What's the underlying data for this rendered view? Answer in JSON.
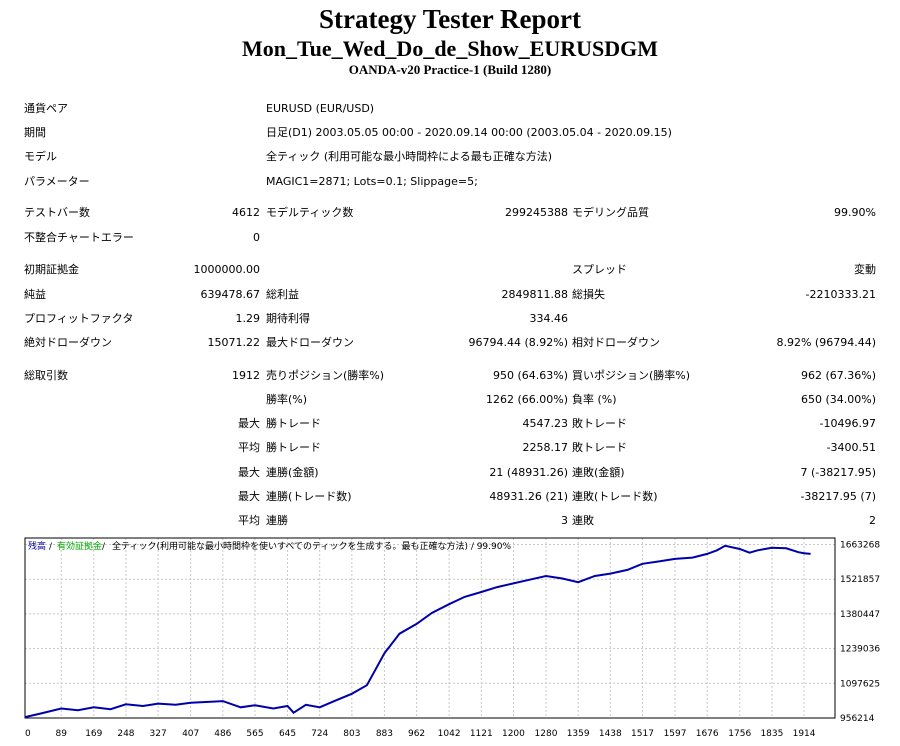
{
  "header": {
    "title": "Strategy Tester Report",
    "subtitle": "Mon_Tue_Wed_Do_de_Show_EURUSDGM",
    "build": "OANDA-v20 Practice-1 (Build 1280)"
  },
  "info": [
    {
      "label": "通貨ペア",
      "value": "EURUSD (EUR/USD)"
    },
    {
      "label": "期間",
      "value": "日足(D1) 2003.05.05 00:00 - 2020.09.14 00:00 (2003.05.04 - 2020.09.15)"
    },
    {
      "label": "モデル",
      "value": "全ティック (利用可能な最小時間枠による最も正確な方法)"
    },
    {
      "label": "パラメーター",
      "value": "MAGIC1=2871; Lots=0.1; Slippage=5;"
    }
  ],
  "stats": {
    "bars_label": "テストバー数",
    "bars_value": "4612",
    "ticks_label": "モデルティック数",
    "ticks_value": "299245388",
    "quality_label": "モデリング品質",
    "quality_value": "99.90%",
    "mismatch_label": "不整合チャートエラー",
    "mismatch_value": "0",
    "deposit_label": "初期証拠金",
    "deposit_value": "1000000.00",
    "spread_label": "スプレッド",
    "spread_value": "変動",
    "net_label": "純益",
    "net_value": "639478.67",
    "gross_profit_label": "総利益",
    "gross_profit_value": "2849811.88",
    "gross_loss_label": "総損失",
    "gross_loss_value": "-2210333.21",
    "pf_label": "プロフィットファクタ",
    "pf_value": "1.29",
    "payoff_label": "期待利得",
    "payoff_value": "334.46",
    "abs_dd_label": "絶対ドローダウン",
    "abs_dd_value": "15071.22",
    "max_dd_label": "最大ドローダウン",
    "max_dd_value": "96794.44 (8.92%)",
    "rel_dd_label": "相対ドローダウン",
    "rel_dd_value": "8.92% (96794.44)",
    "trades_label": "総取引数",
    "trades_value": "1912",
    "short_label": "売りポジション(勝率%)",
    "short_value": "950 (64.63%)",
    "long_label": "買いポジション(勝率%)",
    "long_value": "962 (67.36%)",
    "win_pct_label": "勝率(%)",
    "win_pct_value": "1262 (66.00%)",
    "loss_pct_label": "負率 (%)",
    "loss_pct_value": "650 (34.00%)",
    "max_prefix": "最大",
    "avg_prefix": "平均",
    "largest_win_label": "勝トレード",
    "largest_win_value": "4547.23",
    "largest_loss_label": "敗トレード",
    "largest_loss_value": "-10496.97",
    "avg_win_label": "勝トレード",
    "avg_win_value": "2258.17",
    "avg_loss_label": "敗トレード",
    "avg_loss_value": "-3400.51",
    "cons_wins_money_label": "連勝(金額)",
    "cons_wins_money_value": "21 (48931.26)",
    "cons_loss_money_label": "連敗(金額)",
    "cons_loss_money_value": "7 (-38217.95)",
    "cons_wins_count_label": "連勝(トレード数)",
    "cons_wins_count_value": "48931.26 (21)",
    "cons_loss_count_label": "連敗(トレード数)",
    "cons_loss_count_value": "-38217.95 (7)",
    "avg_cons_wins_label": "連勝",
    "avg_cons_wins_value": "3",
    "avg_cons_loss_label": "連敗",
    "avg_cons_loss_value": "2"
  },
  "chart_data": {
    "type": "line",
    "legend": {
      "balance": "残高",
      "sep1": " / ",
      "equity": "有効証拠金",
      "sep2": " / ",
      "desc": "全ティック(利用可能な最小時間枠を使いすべてのティックを生成する。最も正確な方法) / 99.90%"
    },
    "colors": {
      "balance": "#0000aa",
      "equity": "#00aa00",
      "grid": "#c8c8c8",
      "frame": "#000000"
    },
    "x_ticks": [
      0,
      89,
      169,
      248,
      327,
      407,
      486,
      565,
      645,
      724,
      803,
      883,
      962,
      1042,
      1121,
      1200,
      1280,
      1359,
      1438,
      1517,
      1597,
      1676,
      1756,
      1835,
      1914
    ],
    "y_ticks": [
      956214,
      1097625,
      1239036,
      1380447,
      1521857,
      1663268
    ],
    "xlim": [
      0,
      1990
    ],
    "ylim": [
      956214,
      1690000
    ],
    "grid": true,
    "series": [
      {
        "name": "残高",
        "x": [
          0,
          40,
          89,
          130,
          169,
          210,
          248,
          290,
          327,
          370,
          407,
          450,
          486,
          530,
          565,
          610,
          645,
          660,
          690,
          724,
          760,
          803,
          840,
          883,
          920,
          962,
          1000,
          1042,
          1080,
          1121,
          1160,
          1200,
          1240,
          1280,
          1320,
          1359,
          1400,
          1438,
          1480,
          1517,
          1560,
          1597,
          1640,
          1676,
          1700,
          1720,
          1756,
          1780,
          1800,
          1835,
          1870,
          1900,
          1914,
          1930
        ],
        "y": [
          960000,
          975000,
          995000,
          988000,
          1000000,
          992000,
          1012000,
          1005000,
          1015000,
          1010000,
          1018000,
          1022000,
          1025000,
          1000000,
          1008000,
          995000,
          1005000,
          978000,
          1010000,
          1000000,
          1025000,
          1055000,
          1090000,
          1220000,
          1300000,
          1340000,
          1385000,
          1420000,
          1450000,
          1470000,
          1490000,
          1505000,
          1520000,
          1535000,
          1525000,
          1510000,
          1535000,
          1545000,
          1560000,
          1585000,
          1595000,
          1605000,
          1610000,
          1625000,
          1640000,
          1658000,
          1645000,
          1630000,
          1640000,
          1650000,
          1648000,
          1632000,
          1628000,
          1625000
        ]
      }
    ]
  }
}
